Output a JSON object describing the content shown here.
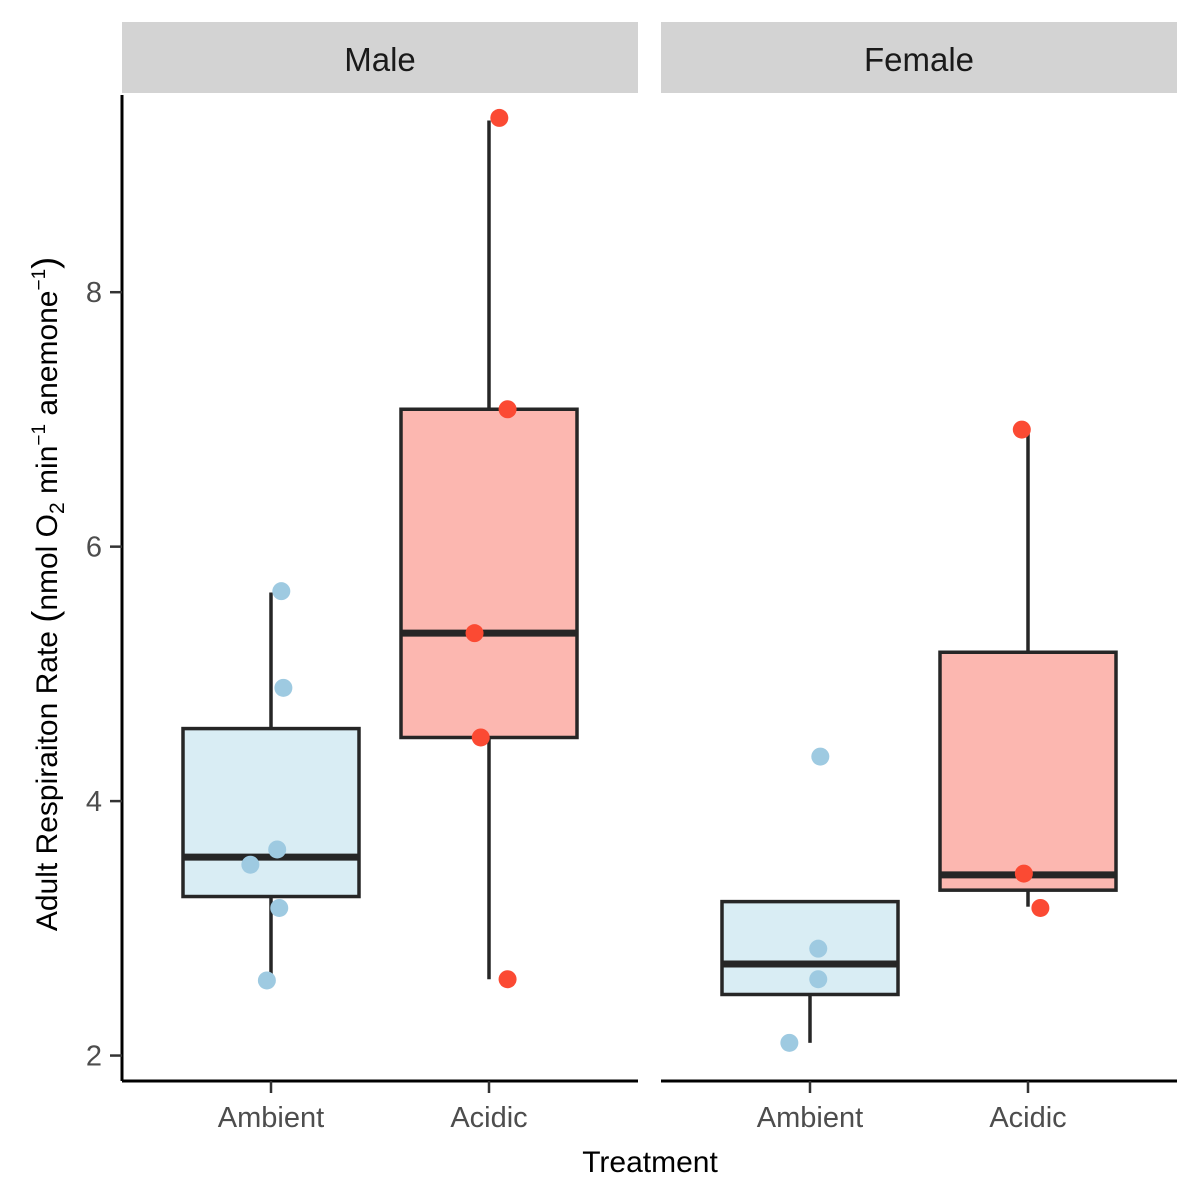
{
  "chart_data": {
    "type": "box",
    "xlabel": "Treatment",
    "ylabel": "Adult Respiraiton Rate (nmol O2 min-1 anemone-1)",
    "ylabel_parts": {
      "pre": "Adult Respiraiton Rate ",
      "paren_open": "(",
      "mid1": "nmol O",
      "sub": "2",
      "mid2": " min",
      "sup1": "−1",
      "mid3": " anemone",
      "sup2": "−1",
      "paren_close": ")"
    },
    "ylim": [
      1.8,
      9.55
    ],
    "yticks": [
      2,
      4,
      6,
      8
    ],
    "categories": [
      "Ambient",
      "Acidic"
    ],
    "colors": {
      "Ambient": {
        "fill": "#d9edf4",
        "point": "#9ecae1"
      },
      "Acidic": {
        "fill": "#fcb7b0",
        "point": "#fb4a33"
      }
    },
    "facets": [
      {
        "name": "Male",
        "groups": [
          {
            "category": "Ambient",
            "box": {
              "q1": 3.25,
              "median": 3.56,
              "q3": 4.57,
              "whisker_low": 2.59,
              "whisker_high": 5.64
            },
            "points": [
              {
                "x": 5.65,
                "jitter": 0.05
              },
              {
                "x": 4.89,
                "jitter": 0.06
              },
              {
                "x": 3.62,
                "jitter": 0.03
              },
              {
                "x": 3.5,
                "jitter": -0.1
              },
              {
                "x": 3.16,
                "jitter": 0.04
              },
              {
                "x": 2.59,
                "jitter": -0.02
              }
            ]
          },
          {
            "category": "Acidic",
            "box": {
              "q1": 4.5,
              "median": 5.32,
              "q3": 7.08,
              "whisker_low": 2.6,
              "whisker_high": 9.35
            },
            "points": [
              {
                "x": 9.37,
                "jitter": 0.05
              },
              {
                "x": 7.08,
                "jitter": 0.09
              },
              {
                "x": 5.32,
                "jitter": -0.07
              },
              {
                "x": 4.5,
                "jitter": -0.04
              },
              {
                "x": 2.6,
                "jitter": 0.09
              }
            ]
          }
        ]
      },
      {
        "name": "Female",
        "groups": [
          {
            "category": "Ambient",
            "box": {
              "q1": 2.48,
              "median": 2.72,
              "q3": 3.21,
              "whisker_low": 2.1,
              "whisker_high": 3.21
            },
            "points": [
              {
                "x": 4.35,
                "jitter": 0.05
              },
              {
                "x": 2.84,
                "jitter": 0.04
              },
              {
                "x": 2.6,
                "jitter": 0.04
              },
              {
                "x": 2.1,
                "jitter": -0.1
              }
            ]
          },
          {
            "category": "Acidic",
            "box": {
              "q1": 3.3,
              "median": 3.42,
              "q3": 5.17,
              "whisker_low": 3.17,
              "whisker_high": 6.9
            },
            "points": [
              {
                "x": 6.92,
                "jitter": -0.03
              },
              {
                "x": 3.43,
                "jitter": -0.02
              },
              {
                "x": 3.16,
                "jitter": 0.06
              }
            ]
          }
        ]
      }
    ]
  }
}
